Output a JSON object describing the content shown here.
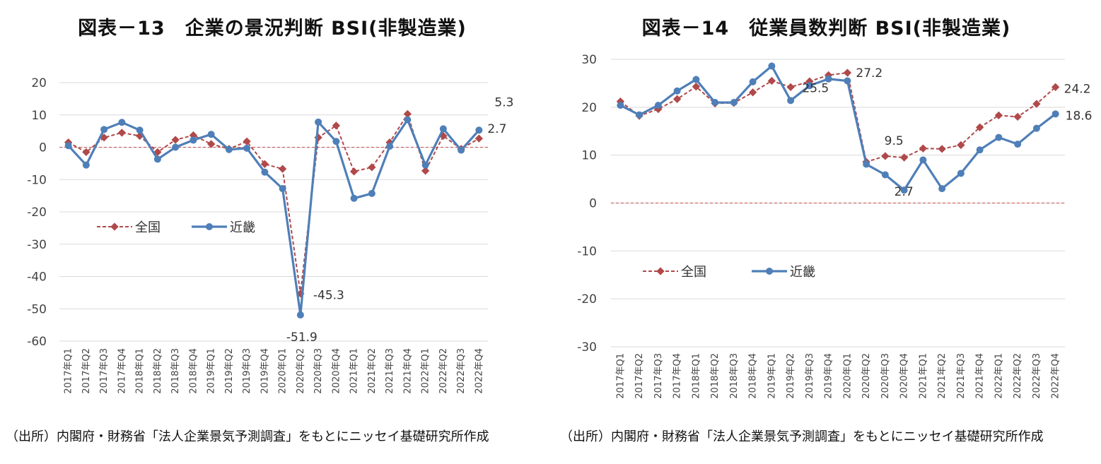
{
  "charts": [
    {
      "id": "left",
      "title": "図表－13　企業の景況判断 BSI(非製造業)",
      "source": "（出所）内閣府・財務省「法人企業景気予測調査」をもとにニッセイ基礎研究所作成"
    },
    {
      "id": "right",
      "title": "図表－14　従業員数判断 BSI(非製造業)",
      "source": "（出所）内閣府・財務省「法人企業景気予測調査」をもとにニッセイ基礎研究所作成"
    }
  ],
  "colors": {
    "national": "#b0494a",
    "kinki": "#4f7fb8",
    "grid": "#d9d9d9",
    "zero": "#c0504d"
  },
  "chart_data": [
    {
      "type": "line",
      "title": "図表－13　企業の景況判断 BSI(非製造業)",
      "categories": [
        "2017年Q1",
        "2017年Q2",
        "2017年Q3",
        "2017年Q4",
        "2018年Q1",
        "2018年Q2",
        "2018年Q3",
        "2018年Q4",
        "2019年Q1",
        "2019年Q2",
        "2019年Q3",
        "2019年Q4",
        "2020年Q1",
        "2020年Q2",
        "2020年Q3",
        "2020年Q4",
        "2021年Q1",
        "2021年Q2",
        "2021年Q3",
        "2021年Q4",
        "2022年Q1",
        "2022年Q2",
        "2022年Q3",
        "2022年Q4"
      ],
      "series": [
        {
          "name": "全国",
          "values": [
            1.5,
            -1.5,
            3,
            4.5,
            3.5,
            -1.5,
            2.3,
            3.7,
            1,
            -0.5,
            1.8,
            -5.2,
            -6.7,
            -45.3,
            3,
            6.7,
            -7.5,
            -6.2,
            1.5,
            10.3,
            -7.3,
            3.5,
            -0.5,
            2.7
          ]
        },
        {
          "name": "近畿",
          "values": [
            0.5,
            -5.5,
            5.5,
            7.7,
            5.3,
            -3.7,
            0,
            2.2,
            4,
            -0.7,
            -0.3,
            -7.7,
            -12.8,
            -51.9,
            7.8,
            1.8,
            -15.8,
            -14.3,
            0.3,
            8.5,
            -5.5,
            5.7,
            -0.9,
            5.3
          ]
        }
      ],
      "annotations": [
        {
          "text": "5.3",
          "series": 1,
          "index": 23
        },
        {
          "text": "2.7",
          "series": 0,
          "index": 23
        },
        {
          "text": "-45.3",
          "series": 0,
          "index": 13
        },
        {
          "text": "-51.9",
          "series": 1,
          "index": 13
        }
      ],
      "ylim": [
        -60,
        20
      ],
      "yticks": [
        20,
        10,
        0,
        -10,
        -20,
        -30,
        -40,
        -50,
        -60
      ],
      "grid": true,
      "legend_position": "middle-left"
    },
    {
      "type": "line",
      "title": "図表－14　従業員数判断 BSI(非製造業)",
      "categories": [
        "2017年Q1",
        "2017年Q2",
        "2017年Q3",
        "2017年Q4",
        "2018年Q1",
        "2018年Q2",
        "2018年Q3",
        "2018年Q4",
        "2019年Q1",
        "2019年Q2",
        "2019年Q3",
        "2019年Q4",
        "2020年Q1",
        "2020年Q2",
        "2020年Q3",
        "2020年Q4",
        "2021年Q1",
        "2021年Q2",
        "2021年Q3",
        "2021年Q4",
        "2022年Q1",
        "2022年Q2",
        "2022年Q3",
        "2022年Q4"
      ],
      "series": [
        {
          "name": "全国",
          "values": [
            21.2,
            18.2,
            19.6,
            21.7,
            24.3,
            20.8,
            20.9,
            23.1,
            25.5,
            24.2,
            25.4,
            26.7,
            27.2,
            8.6,
            9.8,
            9.5,
            11.4,
            11.3,
            12.1,
            15.8,
            18.3,
            18,
            20.7,
            24.2
          ]
        },
        {
          "name": "近畿",
          "values": [
            20.4,
            18.4,
            20.4,
            23.4,
            25.8,
            21,
            21,
            25.3,
            28.6,
            21.4,
            24.5,
            25.9,
            25.5,
            8.1,
            5.9,
            2.7,
            9,
            3,
            6.2,
            11.1,
            13.7,
            12.3,
            15.6,
            18.6
          ]
        }
      ],
      "annotations": [
        {
          "text": "27.2",
          "series": 0,
          "index": 12
        },
        {
          "text": "25.5",
          "series": 1,
          "index": 12
        },
        {
          "text": "9.5",
          "series": 0,
          "index": 15
        },
        {
          "text": "2.7",
          "series": 1,
          "index": 15
        },
        {
          "text": "24.2",
          "series": 0,
          "index": 23
        },
        {
          "text": "18.6",
          "series": 1,
          "index": 23
        }
      ],
      "ylim": [
        -30,
        30
      ],
      "yticks": [
        30,
        20,
        10,
        0,
        -10,
        -20,
        -30
      ],
      "grid": true,
      "legend_position": "middle-left"
    }
  ]
}
